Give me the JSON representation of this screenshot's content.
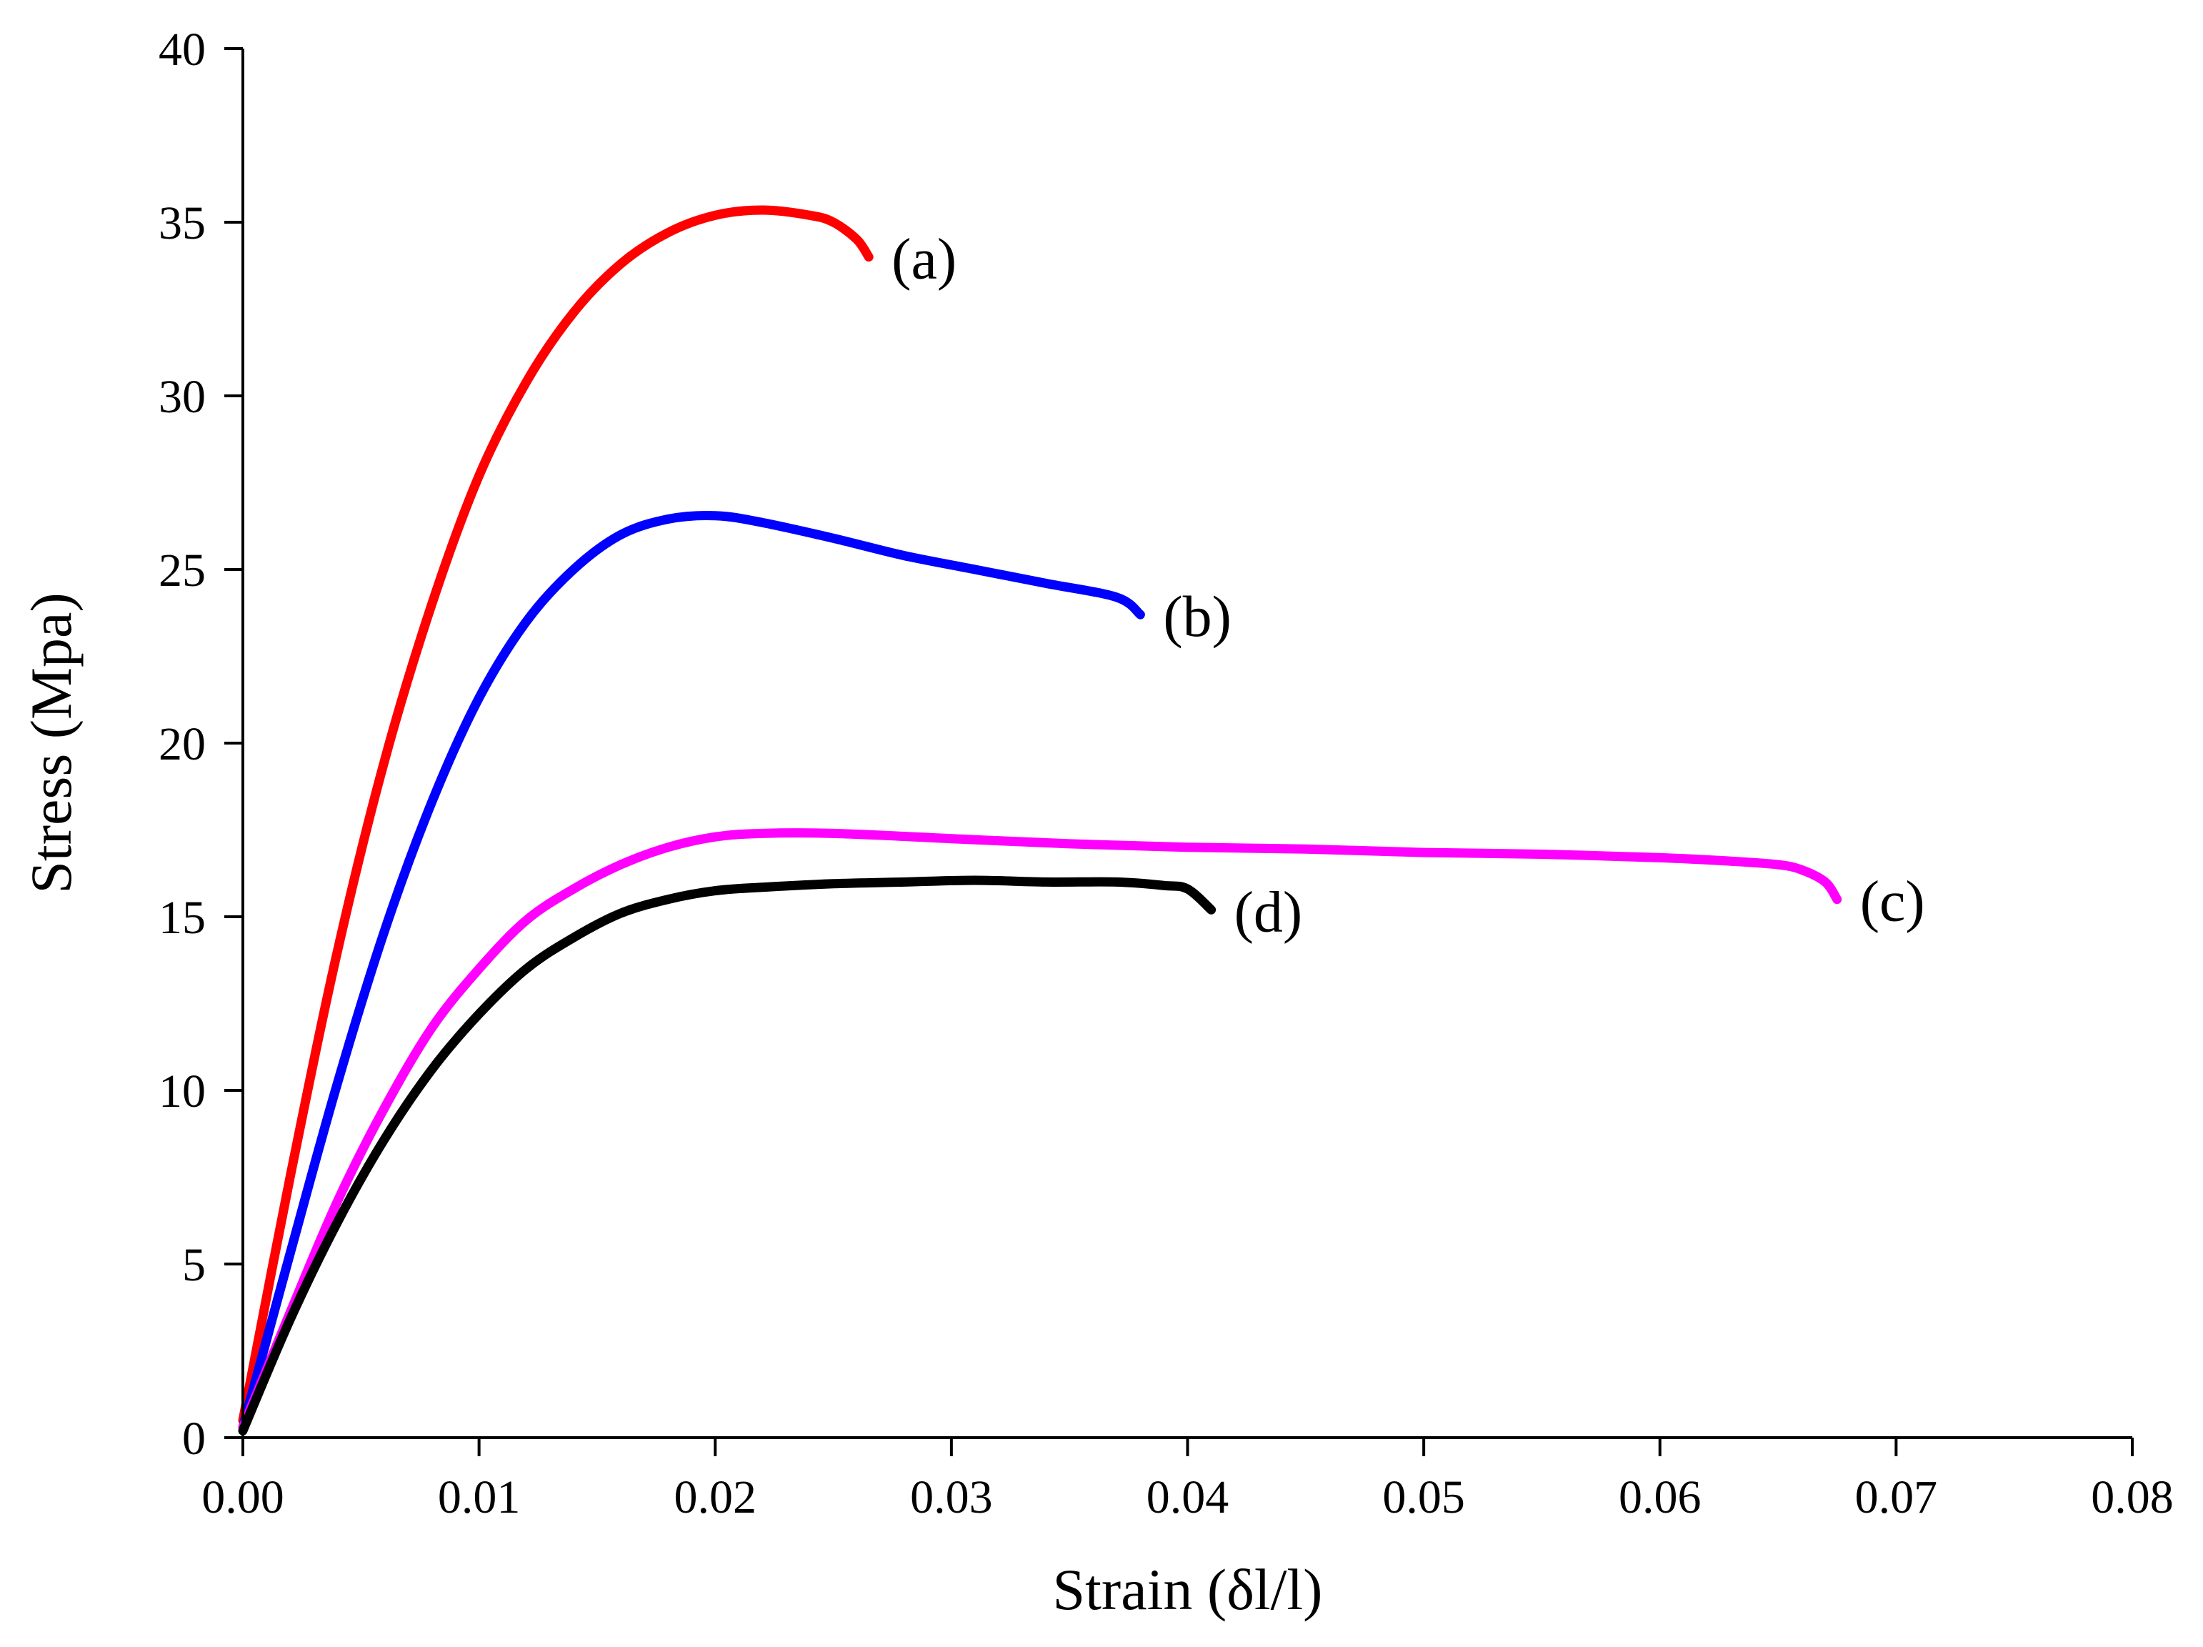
{
  "chart_data": {
    "type": "line",
    "title": "",
    "xlabel": "Strain (δl/l)",
    "ylabel": "Stress (Mpa)",
    "xlim": [
      0,
      0.08
    ],
    "ylim": [
      0,
      40
    ],
    "grid": false,
    "legend": "inline-labels",
    "x_ticks": [
      0.0,
      0.01,
      0.02,
      0.03,
      0.04,
      0.05,
      0.06,
      0.07,
      0.08
    ],
    "x_tick_labels": [
      "0.00",
      "0.01",
      "0.02",
      "0.03",
      "0.04",
      "0.05",
      "0.06",
      "0.07",
      "0.08"
    ],
    "y_ticks": [
      0,
      5,
      10,
      15,
      20,
      25,
      30,
      35,
      40
    ],
    "y_tick_labels": [
      "0",
      "5",
      "10",
      "15",
      "20",
      "25",
      "30",
      "35",
      "40"
    ],
    "series": [
      {
        "name": "(a)",
        "color": "#ff0000",
        "x": [
          0,
          0.002,
          0.004,
          0.006,
          0.008,
          0.01,
          0.012,
          0.014,
          0.016,
          0.018,
          0.02,
          0.022,
          0.024,
          0.025,
          0.026,
          0.0265
        ],
        "y": [
          0.5,
          7.5,
          14.0,
          19.5,
          24.0,
          27.7,
          30.4,
          32.4,
          33.8,
          34.7,
          35.2,
          35.35,
          35.2,
          35.0,
          34.5,
          34.0
        ]
      },
      {
        "name": "(b)",
        "color": "#0000ff",
        "x": [
          0,
          0.002,
          0.004,
          0.006,
          0.008,
          0.01,
          0.012,
          0.014,
          0.016,
          0.018,
          0.02,
          0.022,
          0.025,
          0.028,
          0.031,
          0.034,
          0.037,
          0.038
        ],
        "y": [
          0.3,
          5.3,
          10.2,
          14.6,
          18.3,
          21.3,
          23.5,
          25.0,
          26.0,
          26.45,
          26.55,
          26.35,
          25.9,
          25.4,
          25.0,
          24.6,
          24.2,
          23.7
        ]
      },
      {
        "name": "(c)",
        "color": "#ff00ff",
        "x": [
          0,
          0.002,
          0.004,
          0.006,
          0.008,
          0.01,
          0.012,
          0.014,
          0.016,
          0.018,
          0.02,
          0.022,
          0.025,
          0.03,
          0.035,
          0.04,
          0.045,
          0.05,
          0.055,
          0.06,
          0.063,
          0.065,
          0.066,
          0.067,
          0.0675
        ],
        "y": [
          0.3,
          3.6,
          6.8,
          9.5,
          11.8,
          13.5,
          14.9,
          15.8,
          16.5,
          17.0,
          17.3,
          17.4,
          17.4,
          17.25,
          17.1,
          17.0,
          16.95,
          16.85,
          16.8,
          16.7,
          16.6,
          16.5,
          16.35,
          16.0,
          15.5
        ]
      },
      {
        "name": "(d)",
        "color": "#000000",
        "x": [
          0,
          0.002,
          0.004,
          0.006,
          0.008,
          0.01,
          0.012,
          0.014,
          0.016,
          0.018,
          0.02,
          0.022,
          0.025,
          0.028,
          0.031,
          0.034,
          0.037,
          0.039,
          0.04,
          0.041
        ],
        "y": [
          0.2,
          3.4,
          6.2,
          8.6,
          10.6,
          12.2,
          13.5,
          14.4,
          15.1,
          15.5,
          15.75,
          15.85,
          15.95,
          16.0,
          16.05,
          16.0,
          16.0,
          15.9,
          15.8,
          15.2
        ]
      }
    ]
  }
}
